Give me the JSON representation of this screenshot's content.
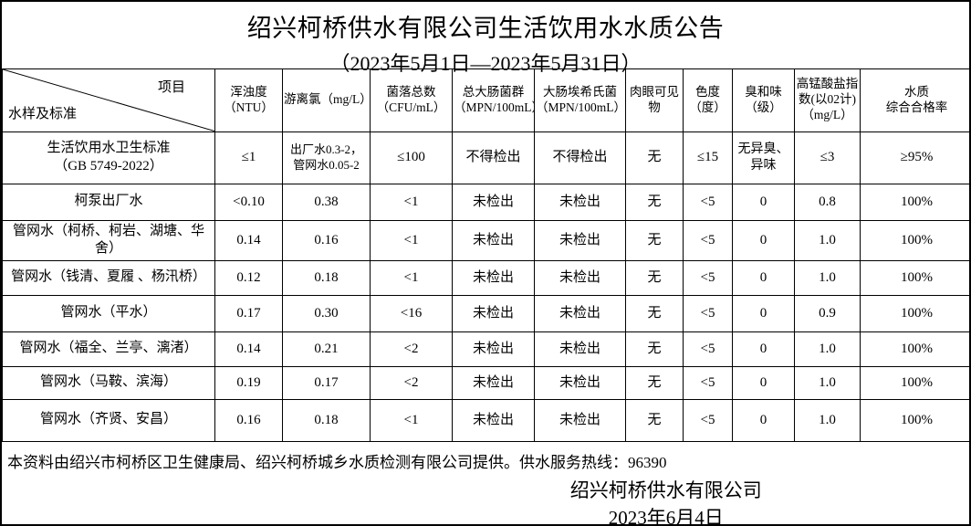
{
  "page": {
    "title": "绍兴柯桥供水有限公司生活饮用水水质公告",
    "subtitle": "（2023年5月1日—2023年5月31日）"
  },
  "table": {
    "corner": {
      "bottom_left": "水样及标准",
      "top_right": "项目"
    },
    "headers": [
      "浑浊度\n（NTU）",
      "游离氯（mg/L）",
      "菌落总数\n（CFU/mL）",
      "总大肠菌群\n（MPN/100mL）",
      "大肠埃希氏菌\n（MPN/100mL）",
      "肉眼可见物",
      "色度\n（度）",
      "臭和味\n（级）",
      "高锰酸盐指\n数(以02计)\n（mg/L）",
      "水质\n综合合格率"
    ],
    "rows": [
      {
        "label": "生活饮用水卫生标准\n（GB 5749-2022）",
        "values": [
          "≤1",
          "出厂水0.3-2，\n管网水0.05-2",
          "≤100",
          "不得检出",
          "不得检出",
          "无",
          "≤15",
          "无异臭、\n异味",
          "≤3",
          "≥95%"
        ]
      },
      {
        "label": "柯泵出厂水",
        "values": [
          "<0.10",
          "0.38",
          "<1",
          "未检出",
          "未检出",
          "无",
          "<5",
          "0",
          "0.8",
          "100%"
        ]
      },
      {
        "label": "管网水（柯桥、柯岩、湖塘、华舍）",
        "values": [
          "0.14",
          "0.16",
          "<1",
          "未检出",
          "未检出",
          "无",
          "<5",
          "0",
          "1.0",
          "100%"
        ]
      },
      {
        "label": "管网水（钱清、夏履 、杨汛桥）",
        "values": [
          "0.12",
          "0.18",
          "<1",
          "未检出",
          "未检出",
          "无",
          "<5",
          "0",
          "1.0",
          "100%"
        ]
      },
      {
        "label": "管网水（平水）",
        "values": [
          "0.17",
          "0.30",
          "<16",
          "未检出",
          "未检出",
          "无",
          "<5",
          "0",
          "0.9",
          "100%"
        ]
      },
      {
        "label": "管网水（福全、兰亭、漓渚）",
        "values": [
          "0.14",
          "0.21",
          "<2",
          "未检出",
          "未检出",
          "无",
          "<5",
          "0",
          "1.0",
          "100%"
        ]
      },
      {
        "label": "管网水（马鞍、滨海）",
        "values": [
          "0.19",
          "0.17",
          "<2",
          "未检出",
          "未检出",
          "无",
          "<5",
          "0",
          "1.0",
          "100%"
        ]
      },
      {
        "label": "管网水（齐贤、安昌）",
        "values": [
          "0.16",
          "0.18",
          "<1",
          "未检出",
          "未检出",
          "无",
          "<5",
          "0",
          "1.0",
          "100%"
        ]
      }
    ]
  },
  "footer": {
    "note": "本资料由绍兴市柯桥区卫生健康局、绍兴柯桥城乡水质检测有限公司提供。供水服务热线：96390",
    "company": "绍兴柯桥供水有限公司",
    "date": "2023年6月4日"
  },
  "colors": {
    "background": "#ffffff",
    "border": "#000000",
    "text": "#000000"
  }
}
